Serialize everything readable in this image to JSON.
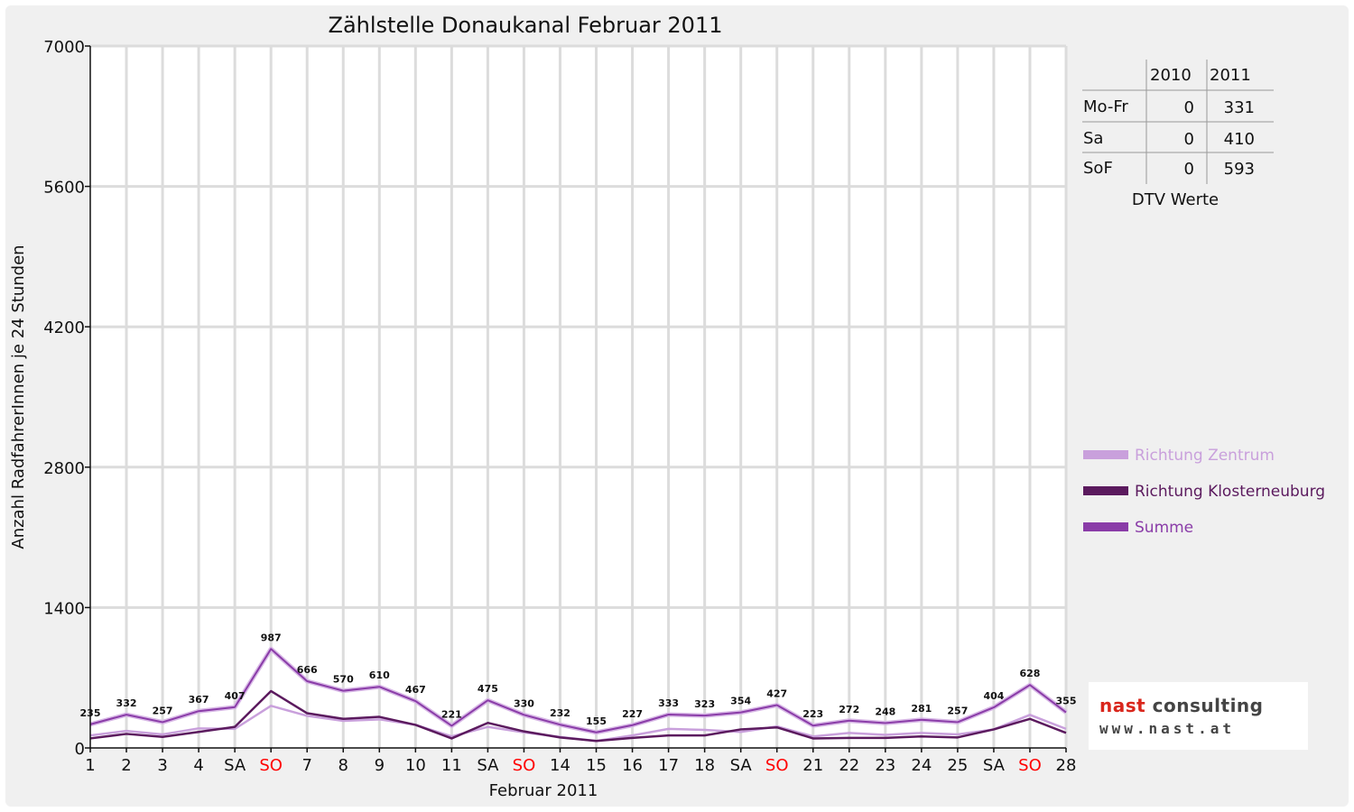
{
  "chart_data": {
    "type": "line",
    "title": "Zählstelle Donaukanal Februar 2011",
    "xlabel": "Februar 2011",
    "ylabel": "Anzahl RadfahrerInnen je 24 Stunden",
    "ylim": [
      0,
      7000
    ],
    "yticks": [
      0,
      1400,
      2800,
      4200,
      5600,
      7000
    ],
    "grid": true,
    "legend_position": "right",
    "categories": [
      "1",
      "2",
      "3",
      "4",
      "SA",
      "SO",
      "7",
      "8",
      "9",
      "10",
      "11",
      "SA",
      "SO",
      "14",
      "15",
      "16",
      "17",
      "18",
      "SA",
      "SO",
      "21",
      "22",
      "23",
      "24",
      "25",
      "SA",
      "SO",
      "28"
    ],
    "sunday_indices": [
      5,
      12,
      19,
      26
    ],
    "series": [
      {
        "name": "Richtung Zentrum",
        "color": "#c9a0dc",
        "values": [
          125,
          170,
          135,
          195,
          190,
          420,
          320,
          270,
          285,
          230,
          115,
          210,
          155,
          110,
          70,
          125,
          190,
          180,
          160,
          215,
          115,
          150,
          130,
          150,
          135,
          185,
          330,
          190
        ]
      },
      {
        "name": "Richtung Klosterneuburg",
        "color": "#5b1a5e",
        "values": [
          95,
          140,
          110,
          160,
          210,
          567,
          346,
          290,
          310,
          230,
          95,
          250,
          165,
          105,
          70,
          100,
          125,
          125,
          185,
          205,
          95,
          100,
          100,
          115,
          105,
          185,
          290,
          150
        ]
      },
      {
        "name": "Summe",
        "color": "#8a3ca8",
        "values": [
          235,
          332,
          257,
          367,
          407,
          987,
          666,
          570,
          610,
          467,
          221,
          475,
          330,
          232,
          155,
          227,
          333,
          323,
          354,
          427,
          223,
          272,
          248,
          281,
          257,
          404,
          628,
          355
        ],
        "data_labels": true
      }
    ]
  },
  "dtv_table": {
    "caption": "DTV Werte",
    "columns": [
      "2010",
      "2011"
    ],
    "rows": [
      {
        "label": "Mo-Fr",
        "v2010": "0",
        "v2011": "331"
      },
      {
        "label": "Sa",
        "v2010": "0",
        "v2011": "410"
      },
      {
        "label": "SoF",
        "v2010": "0",
        "v2011": "593"
      }
    ]
  },
  "logo": {
    "word1": "nast",
    "word2": "consulting",
    "url": "www.nast.at"
  }
}
